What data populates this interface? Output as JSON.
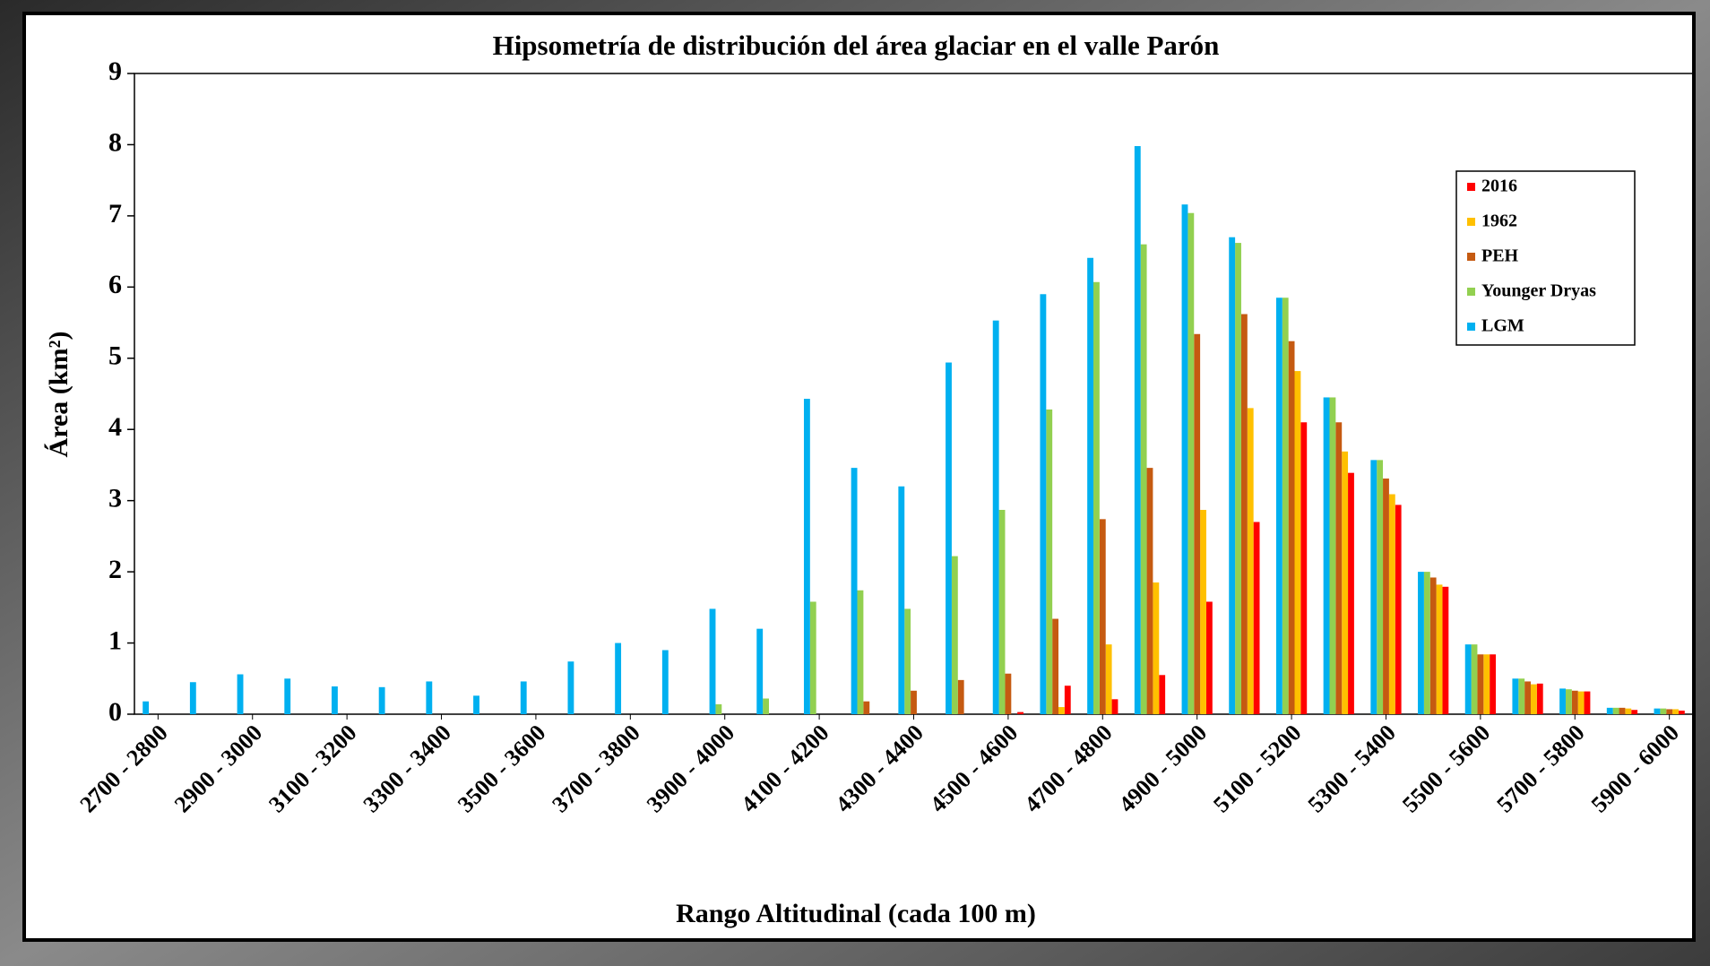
{
  "chart_data": {
    "type": "bar",
    "title": "Hipsometría de distribución del área glaciar en el valle Parón",
    "x_label": "Rango Altitudinal (cada 100 m)",
    "y_label": "Área (km²)",
    "categories": [
      "2700 - 2800",
      null,
      "2900 - 3000",
      null,
      "3100 - 3200",
      null,
      "3300 - 3400",
      null,
      "3500 - 3600",
      null,
      "3700 - 3800",
      null,
      "3900 - 4000",
      null,
      "4100 - 4200",
      null,
      "4300 - 4400",
      null,
      "4500 - 4600",
      null,
      "4700 - 4800",
      null,
      "4900 - 5000",
      null,
      "5100 - 5200",
      null,
      "5300 - 5400",
      null,
      "5500 - 5600",
      null,
      "5700 - 5800",
      null,
      "5900 - 6000"
    ],
    "series": [
      {
        "name": "2016",
        "color": "#ff0000",
        "values": [
          0,
          0,
          0,
          0,
          0,
          0,
          0,
          0,
          0,
          0,
          0,
          0,
          0,
          0,
          0,
          0,
          0,
          0,
          0.03,
          0.4,
          0.21,
          0.55,
          1.58,
          2.7,
          4.1,
          3.39,
          2.94,
          1.79,
          0.84,
          0.43,
          0.32,
          0.06,
          0.05
        ]
      },
      {
        "name": "1962",
        "color": "#ffc000",
        "values": [
          0,
          0,
          0,
          0,
          0,
          0,
          0,
          0,
          0,
          0,
          0,
          0,
          0,
          0,
          0,
          0,
          0,
          0,
          0,
          0.1,
          0.98,
          1.85,
          2.87,
          4.3,
          4.82,
          3.69,
          3.09,
          1.82,
          0.84,
          0.42,
          0.32,
          0.08,
          0.07
        ]
      },
      {
        "name": "PEH",
        "color": "#c55a11",
        "values": [
          0,
          0,
          0,
          0,
          0,
          0,
          0,
          0,
          0,
          0,
          0,
          0,
          0,
          0,
          0,
          0.18,
          0.33,
          0.48,
          0.57,
          1.34,
          2.74,
          3.46,
          5.34,
          5.62,
          5.24,
          4.1,
          3.31,
          1.92,
          0.84,
          0.46,
          0.33,
          0.09,
          0.07
        ]
      },
      {
        "name": "Younger Dryas",
        "color": "#92d050",
        "values": [
          0,
          0,
          0,
          0,
          0,
          0,
          0,
          0,
          0,
          0,
          0,
          0,
          0.14,
          0.22,
          1.58,
          1.74,
          1.48,
          2.22,
          2.87,
          4.28,
          6.07,
          6.6,
          7.04,
          6.62,
          5.85,
          4.45,
          3.57,
          2.0,
          0.98,
          0.5,
          0.35,
          0.09,
          0.08
        ]
      },
      {
        "name": "LGM",
        "color": "#00b0f0",
        "values": [
          0.18,
          0.45,
          0.56,
          0.5,
          0.39,
          0.38,
          0.46,
          0.26,
          0.46,
          0.74,
          1.0,
          0.9,
          1.48,
          1.2,
          4.43,
          3.46,
          3.2,
          4.94,
          5.53,
          5.9,
          6.41,
          7.98,
          7.16,
          6.7,
          5.85,
          4.45,
          3.57,
          2.0,
          0.98,
          0.5,
          0.36,
          0.09,
          0.08
        ]
      }
    ],
    "ylim": [
      0,
      9
    ],
    "yticks": [
      0,
      1,
      2,
      3,
      4,
      5,
      6,
      7,
      8,
      9
    ],
    "grid": false,
    "legend": "upper right"
  }
}
